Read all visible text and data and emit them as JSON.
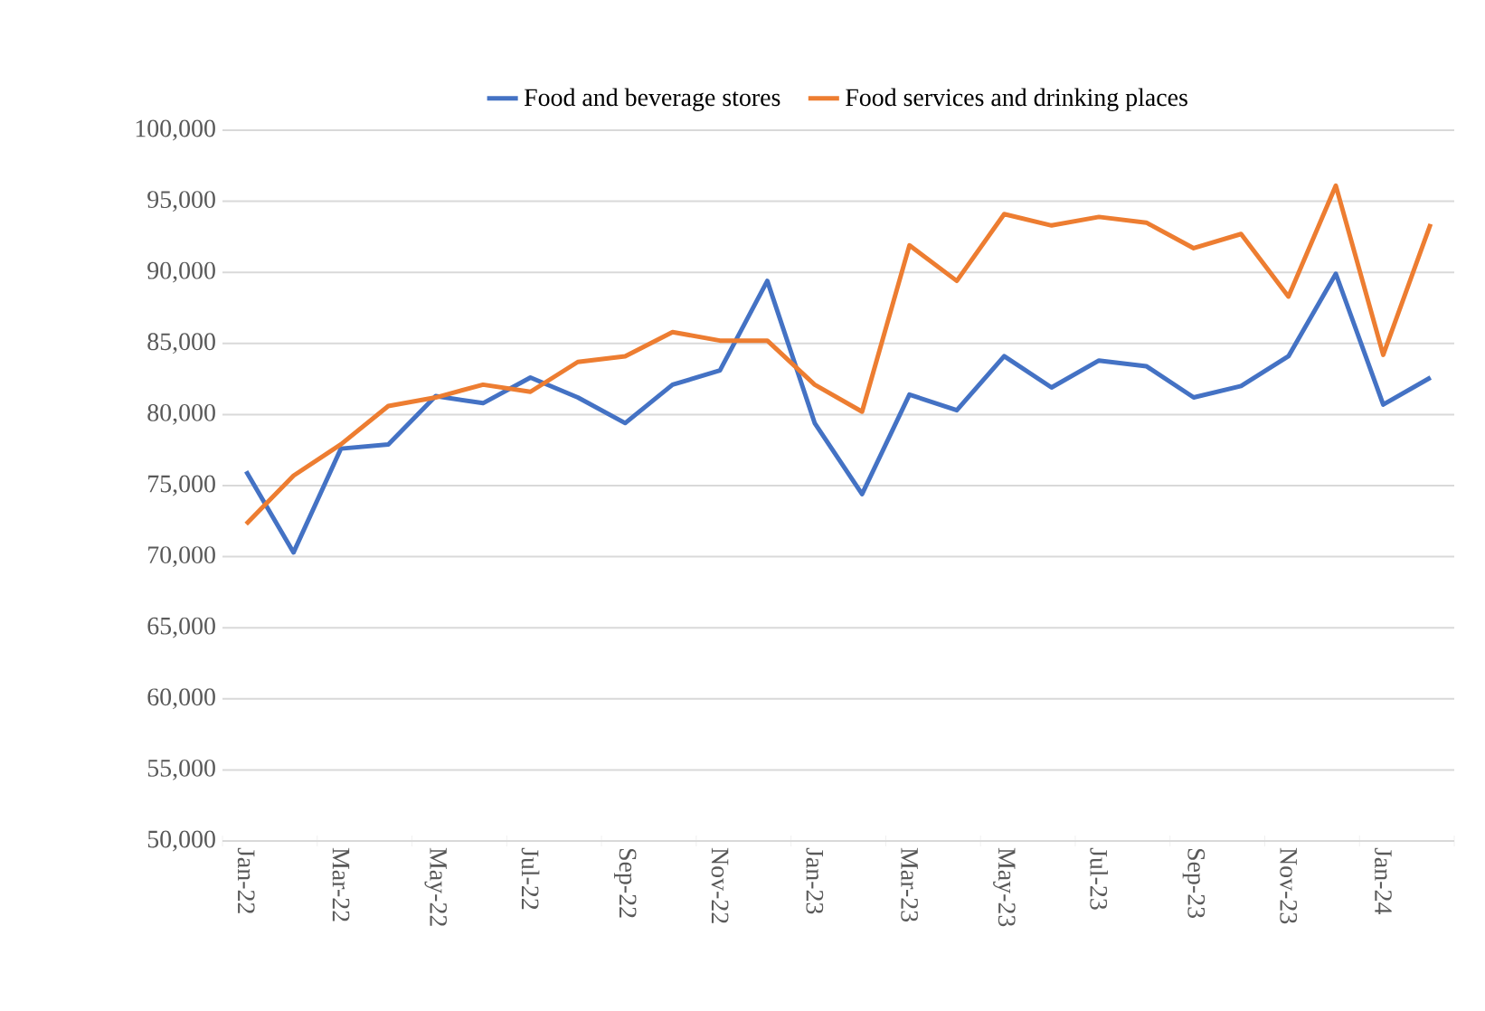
{
  "chart_data": {
    "type": "line",
    "categories": [
      "Jan-22",
      null,
      "Mar-22",
      null,
      "May-22",
      null,
      "Jul-22",
      null,
      "Sep-22",
      null,
      "Nov-22",
      null,
      "Jan-23",
      null,
      "Mar-23",
      null,
      "May-23",
      null,
      "Jul-23",
      null,
      "Sep-23",
      null,
      "Nov-23",
      null,
      "Jan-24",
      null
    ],
    "series": [
      {
        "name": "Food and beverage stores",
        "color": "#4472c4",
        "values": [
          76000,
          70300,
          77600,
          77900,
          81300,
          80800,
          82600,
          81200,
          79400,
          82100,
          83100,
          89400,
          79400,
          74400,
          81400,
          80300,
          84100,
          81900,
          83800,
          83400,
          81200,
          82000,
          84100,
          89900,
          80700,
          82600
        ]
      },
      {
        "name": "Food services and drinking places",
        "color": "#ed7d31",
        "values": [
          72300,
          75700,
          77900,
          80600,
          81200,
          82100,
          81600,
          83700,
          84100,
          85800,
          85200,
          85200,
          82100,
          80200,
          91900,
          89400,
          94100,
          93300,
          93900,
          93500,
          91700,
          92700,
          88300,
          96100,
          84200,
          93400
        ]
      }
    ],
    "ylim": [
      50000,
      100000
    ],
    "yticks": [
      {
        "value": 50000,
        "label": "50,000"
      },
      {
        "value": 55000,
        "label": "55,000"
      },
      {
        "value": 60000,
        "label": "60,000"
      },
      {
        "value": 65000,
        "label": "65,000"
      },
      {
        "value": 70000,
        "label": "70,000"
      },
      {
        "value": 75000,
        "label": "75,000"
      },
      {
        "value": 80000,
        "label": "80,000"
      },
      {
        "value": 85000,
        "label": "85,000"
      },
      {
        "value": 90000,
        "label": "90,000"
      },
      {
        "value": 95000,
        "label": "95,000"
      },
      {
        "value": 100000,
        "label": "100,000"
      }
    ],
    "grid": "y",
    "legend": "top",
    "marker": "none",
    "line_style": "solid"
  }
}
